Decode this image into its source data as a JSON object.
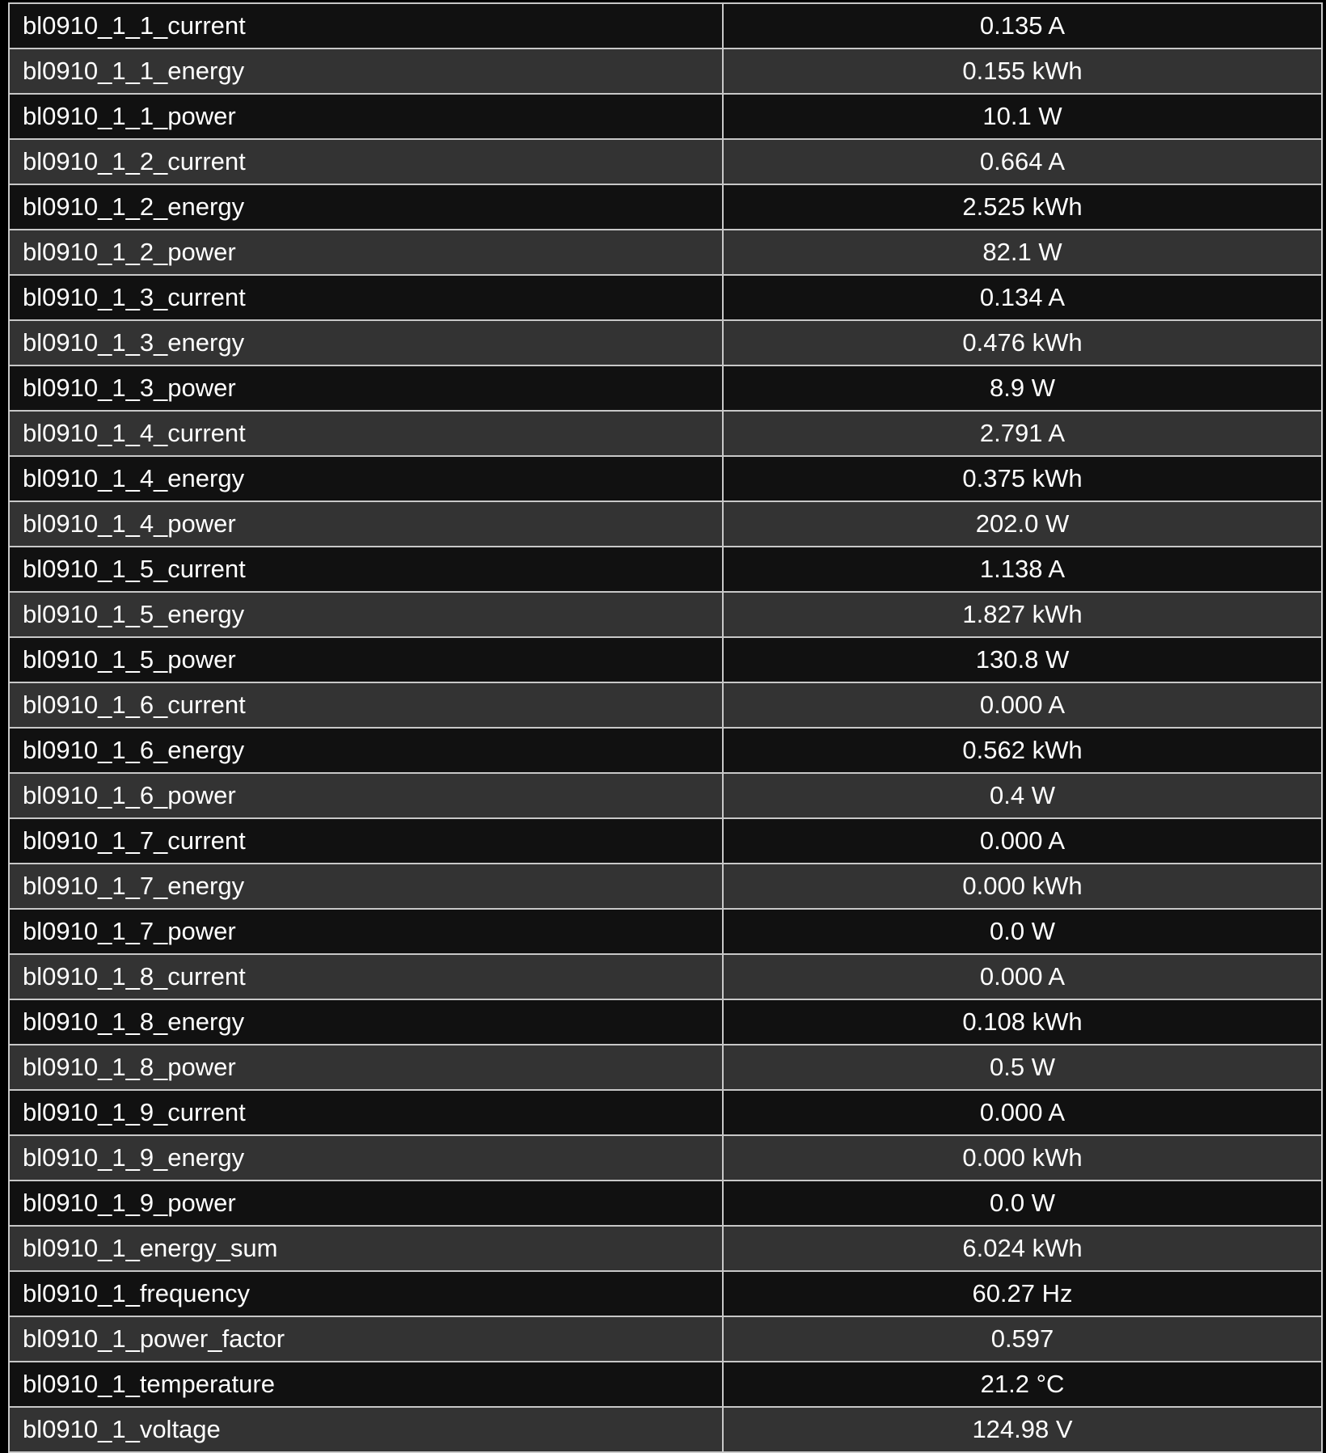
{
  "table": {
    "rows": [
      [
        "bl0910_1_1_current",
        "0.135 A"
      ],
      [
        "bl0910_1_1_energy",
        "0.155 kWh"
      ],
      [
        "bl0910_1_1_power",
        "10.1 W"
      ],
      [
        "bl0910_1_2_current",
        "0.664 A"
      ],
      [
        "bl0910_1_2_energy",
        "2.525 kWh"
      ],
      [
        "bl0910_1_2_power",
        "82.1 W"
      ],
      [
        "bl0910_1_3_current",
        "0.134 A"
      ],
      [
        "bl0910_1_3_energy",
        "0.476 kWh"
      ],
      [
        "bl0910_1_3_power",
        "8.9 W"
      ],
      [
        "bl0910_1_4_current",
        "2.791 A"
      ],
      [
        "bl0910_1_4_energy",
        "0.375 kWh"
      ],
      [
        "bl0910_1_4_power",
        "202.0 W"
      ],
      [
        "bl0910_1_5_current",
        "1.138 A"
      ],
      [
        "bl0910_1_5_energy",
        "1.827 kWh"
      ],
      [
        "bl0910_1_5_power",
        "130.8 W"
      ],
      [
        "bl0910_1_6_current",
        "0.000 A"
      ],
      [
        "bl0910_1_6_energy",
        "0.562 kWh"
      ],
      [
        "bl0910_1_6_power",
        "0.4 W"
      ],
      [
        "bl0910_1_7_current",
        "0.000 A"
      ],
      [
        "bl0910_1_7_energy",
        "0.000 kWh"
      ],
      [
        "bl0910_1_7_power",
        "0.0 W"
      ],
      [
        "bl0910_1_8_current",
        "0.000 A"
      ],
      [
        "bl0910_1_8_energy",
        "0.108 kWh"
      ],
      [
        "bl0910_1_8_power",
        "0.5 W"
      ],
      [
        "bl0910_1_9_current",
        "0.000 A"
      ],
      [
        "bl0910_1_9_energy",
        "0.000 kWh"
      ],
      [
        "bl0910_1_9_power",
        "0.0 W"
      ],
      [
        "bl0910_1_energy_sum",
        "6.024 kWh"
      ],
      [
        "bl0910_1_frequency",
        "60.27 Hz"
      ],
      [
        "bl0910_1_power_factor",
        "0.597"
      ],
      [
        "bl0910_1_temperature",
        "21.2 °C"
      ],
      [
        "bl0910_1_voltage",
        "124.98 V"
      ]
    ]
  }
}
